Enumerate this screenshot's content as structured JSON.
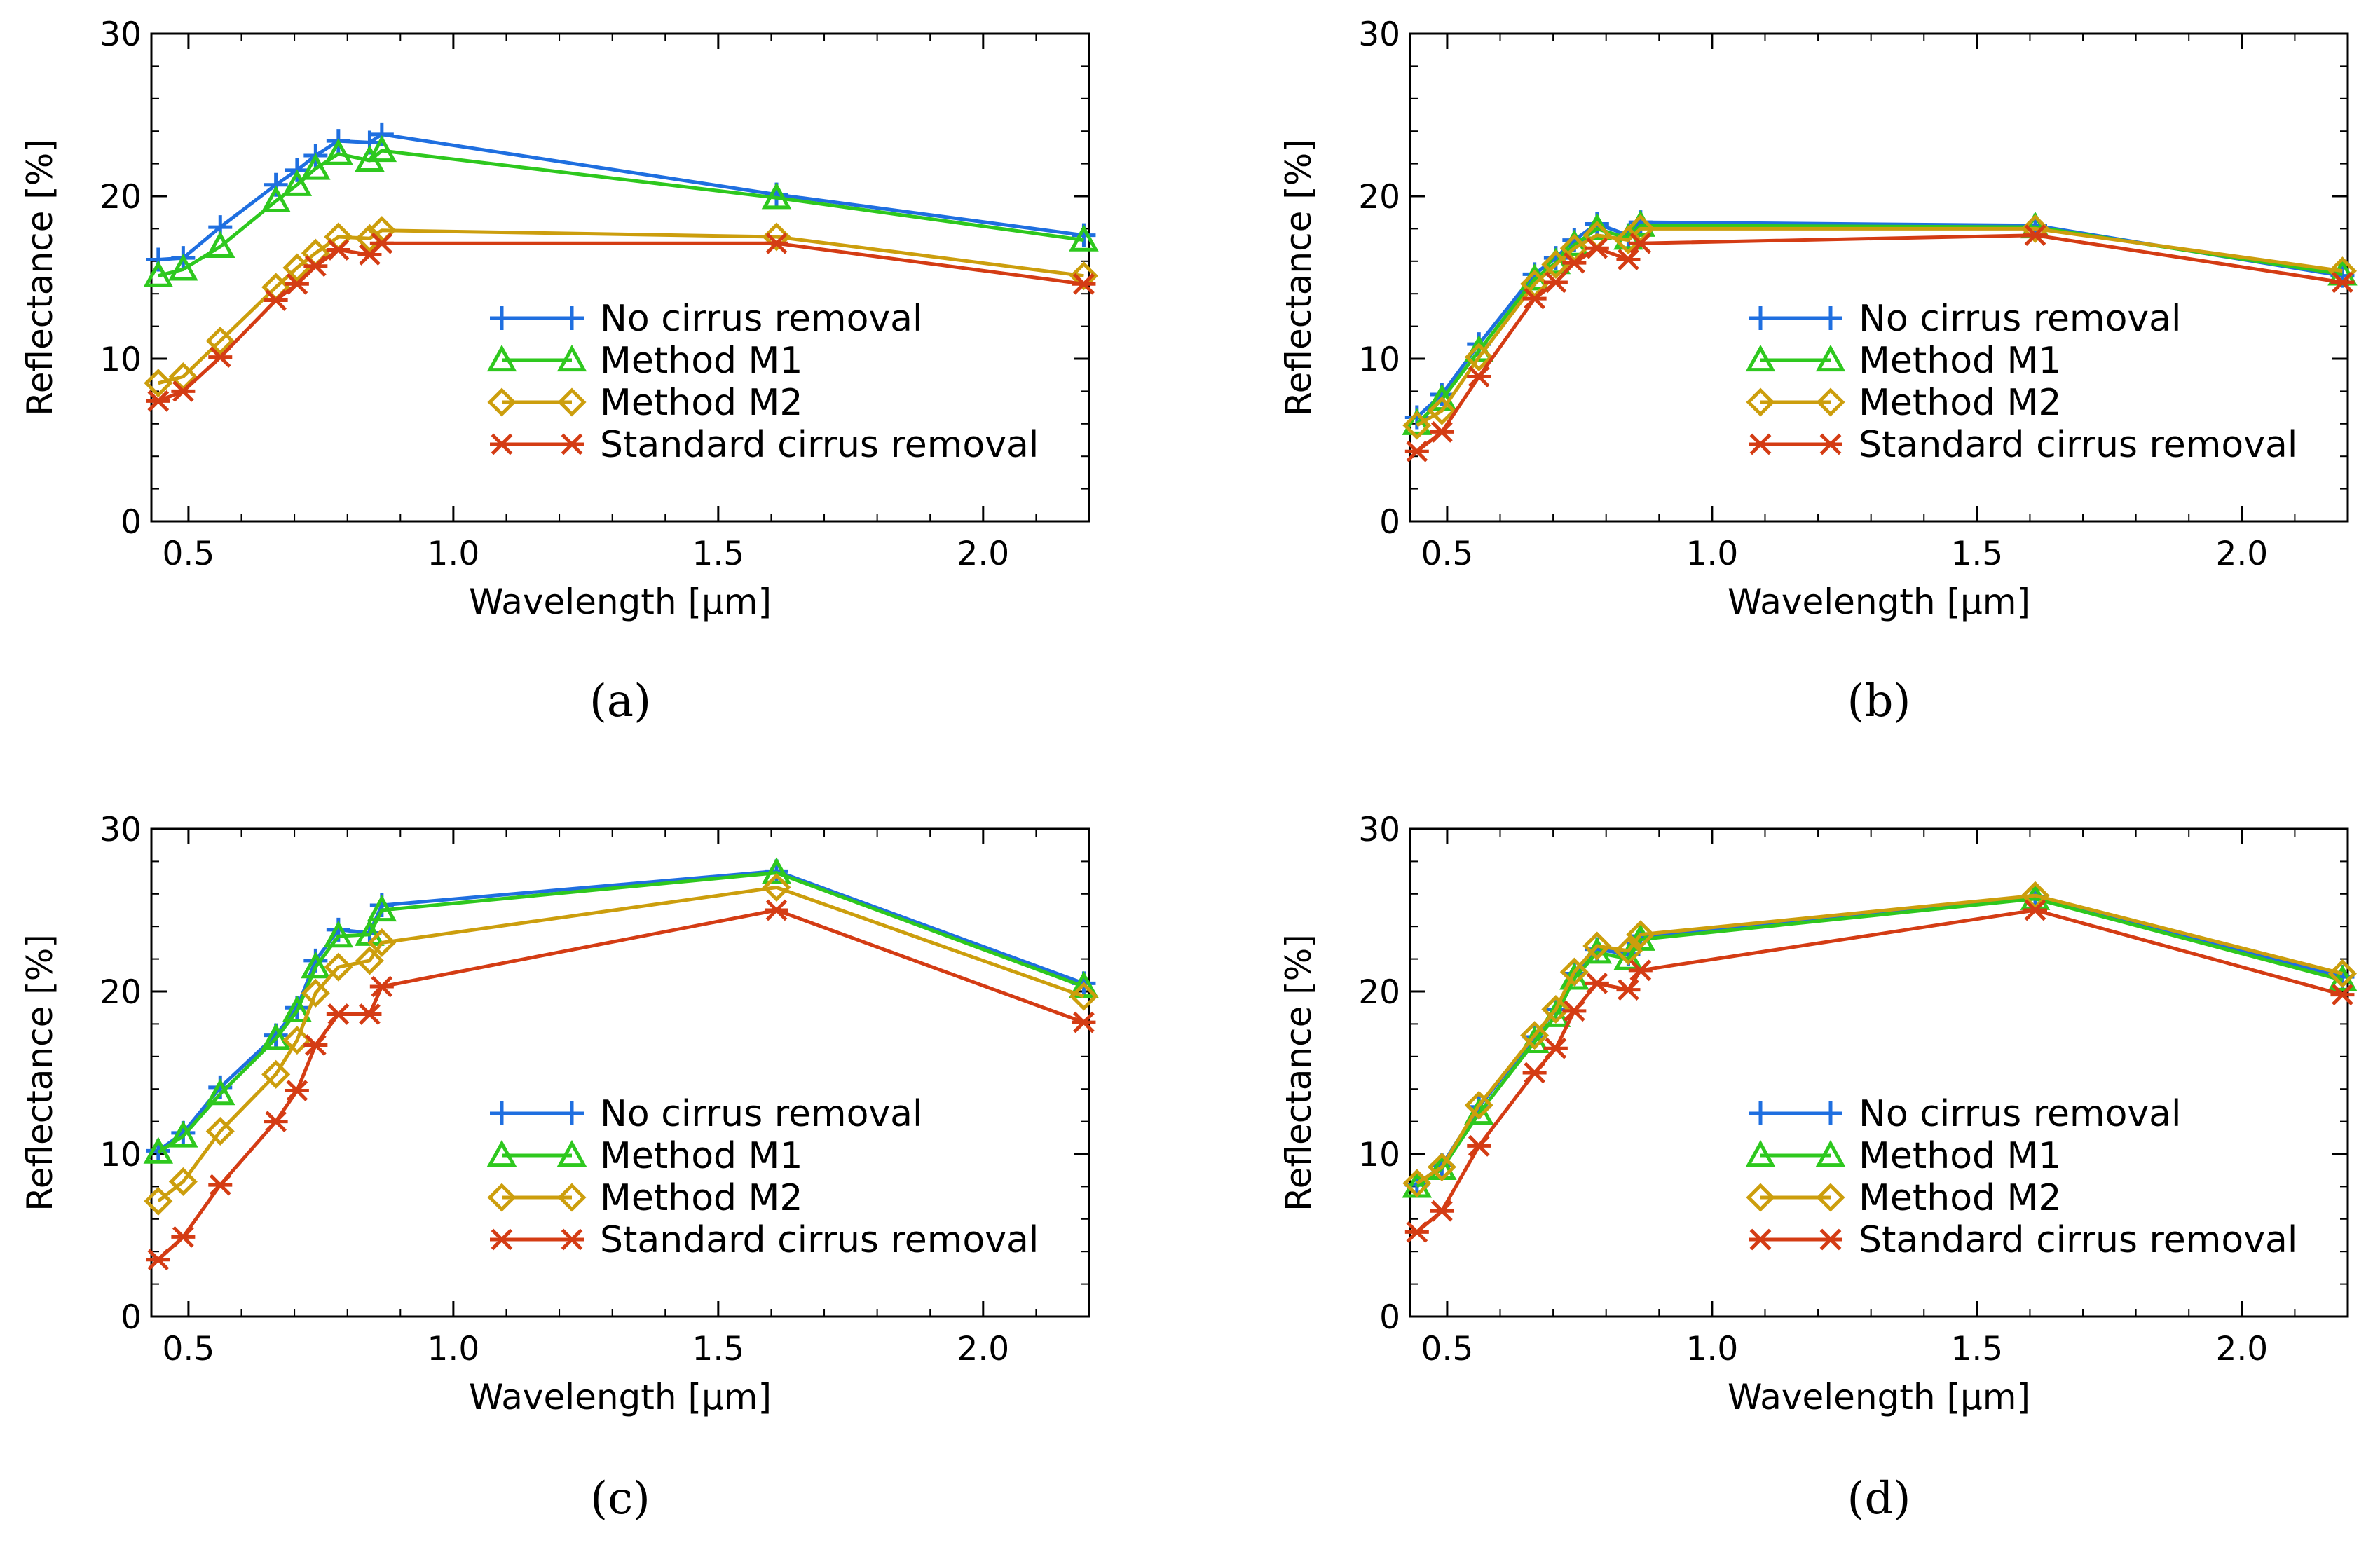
{
  "figure": {
    "panels_order": [
      "(a)",
      "(b)",
      "(c)",
      "(d)"
    ]
  },
  "styles": {
    "No cirrus removal": {
      "color": "#1f6fe0",
      "marker": "plus-marker"
    },
    "Method M1": {
      "color": "#2ec81e",
      "marker": "triangle-marker"
    },
    "Method M2": {
      "color": "#cc9e0d",
      "marker": "diamond-marker"
    },
    "Standard cirrus removal": {
      "color": "#d43c14",
      "marker": "asterisk-marker"
    }
  },
  "chart_data": [
    {
      "type": "line",
      "caption": "(a)",
      "xlabel": "Wavelength [µm]",
      "ylabel": "Reflectance [%]",
      "xlim": [
        0.43,
        2.2
      ],
      "ylim": [
        0,
        30
      ],
      "xticks": [
        0.5,
        1.0,
        1.5,
        2.0
      ],
      "xtick_labels": [
        "0.5",
        "1.0",
        "1.5",
        "2.0"
      ],
      "yticks": [
        0,
        10,
        20,
        30
      ],
      "ytick_labels": [
        "0",
        "10",
        "20",
        "30"
      ],
      "legend_position": "center-right",
      "x": [
        0.443,
        0.49,
        0.56,
        0.665,
        0.705,
        0.74,
        0.783,
        0.842,
        0.865,
        1.61,
        2.19
      ],
      "series": [
        {
          "name": "No cirrus removal",
          "values": [
            16.1,
            16.2,
            18.1,
            20.7,
            21.6,
            22.5,
            23.4,
            23.3,
            23.8,
            20.1,
            17.6
          ]
        },
        {
          "name": "Method M1",
          "values": [
            15.1,
            15.5,
            16.9,
            19.7,
            20.7,
            21.7,
            22.6,
            22.2,
            22.8,
            19.9,
            17.3
          ]
        },
        {
          "name": "Method M2",
          "values": [
            8.5,
            8.9,
            11.1,
            14.4,
            15.6,
            16.5,
            17.5,
            17.4,
            17.9,
            17.5,
            15.1
          ]
        },
        {
          "name": "Standard cirrus removal",
          "values": [
            7.4,
            8.0,
            10.1,
            13.6,
            14.6,
            15.7,
            16.7,
            16.4,
            17.1,
            17.1,
            14.6
          ]
        }
      ]
    },
    {
      "type": "line",
      "caption": "(b)",
      "xlabel": "Wavelength [µm]",
      "ylabel": "Reflectance [%]",
      "xlim": [
        0.43,
        2.2
      ],
      "ylim": [
        0,
        30
      ],
      "xticks": [
        0.5,
        1.0,
        1.5,
        2.0
      ],
      "xtick_labels": [
        "0.5",
        "1.0",
        "1.5",
        "2.0"
      ],
      "yticks": [
        0,
        10,
        20,
        30
      ],
      "ytick_labels": [
        "0",
        "10",
        "20",
        "30"
      ],
      "legend_position": "center-right",
      "x": [
        0.443,
        0.49,
        0.56,
        0.665,
        0.705,
        0.74,
        0.783,
        0.842,
        0.865,
        1.61,
        2.19
      ],
      "series": [
        {
          "name": "No cirrus removal",
          "values": [
            6.4,
            7.8,
            10.9,
            15.2,
            16.2,
            17.3,
            18.3,
            17.6,
            18.4,
            18.2,
            15.1
          ]
        },
        {
          "name": "Method M1",
          "values": [
            6.0,
            7.5,
            10.5,
            14.9,
            15.9,
            17.0,
            18.0,
            17.4,
            18.2,
            18.1,
            15.2
          ]
        },
        {
          "name": "Method M2",
          "values": [
            5.9,
            6.8,
            10.1,
            14.6,
            15.8,
            16.8,
            17.6,
            17.3,
            18.0,
            18.0,
            15.4
          ]
        },
        {
          "name": "Standard cirrus removal",
          "values": [
            4.3,
            5.5,
            8.9,
            13.7,
            14.7,
            15.9,
            16.8,
            16.1,
            17.1,
            17.6,
            14.7
          ]
        }
      ]
    },
    {
      "type": "line",
      "caption": "(c)",
      "xlabel": "Wavelength [µm]",
      "ylabel": "Reflectance [%]",
      "xlim": [
        0.43,
        2.2
      ],
      "ylim": [
        0,
        30
      ],
      "xticks": [
        0.5,
        1.0,
        1.5,
        2.0
      ],
      "xtick_labels": [
        "0.5",
        "1.0",
        "1.5",
        "2.0"
      ],
      "yticks": [
        0,
        10,
        20,
        30
      ],
      "ytick_labels": [
        "0",
        "10",
        "20",
        "30"
      ],
      "legend_position": "center-right",
      "x": [
        0.443,
        0.49,
        0.56,
        0.665,
        0.705,
        0.74,
        0.783,
        0.842,
        0.865,
        1.61,
        2.19
      ],
      "series": [
        {
          "name": "No cirrus removal",
          "values": [
            10.2,
            11.3,
            14.1,
            17.3,
            19.0,
            21.9,
            23.8,
            23.6,
            25.3,
            27.4,
            20.5
          ]
        },
        {
          "name": "Method M1",
          "values": [
            10.1,
            11.1,
            13.7,
            17.1,
            18.8,
            21.5,
            23.4,
            23.5,
            25.0,
            27.3,
            20.3
          ]
        },
        {
          "name": "Method M2",
          "values": [
            7.1,
            8.3,
            11.4,
            14.9,
            17.0,
            19.9,
            21.5,
            21.9,
            23.0,
            26.4,
            19.7
          ]
        },
        {
          "name": "Standard cirrus removal",
          "values": [
            3.5,
            4.9,
            8.1,
            12.0,
            13.9,
            16.7,
            18.6,
            18.6,
            20.3,
            25.0,
            18.1
          ]
        }
      ]
    },
    {
      "type": "line",
      "caption": "(d)",
      "xlabel": "Wavelength [µm]",
      "ylabel": "Reflectance [%]",
      "xlim": [
        0.43,
        2.2
      ],
      "ylim": [
        0,
        30
      ],
      "xticks": [
        0.5,
        1.0,
        1.5,
        2.0
      ],
      "xtick_labels": [
        "0.5",
        "1.0",
        "1.5",
        "2.0"
      ],
      "yticks": [
        0,
        10,
        20,
        30
      ],
      "ytick_labels": [
        "0",
        "10",
        "20",
        "30"
      ],
      "legend_position": "center-right",
      "x": [
        0.443,
        0.49,
        0.56,
        0.665,
        0.705,
        0.74,
        0.783,
        0.842,
        0.865,
        1.61,
        2.19
      ],
      "series": [
        {
          "name": "No cirrus removal",
          "values": [
            8.1,
            9.3,
            12.9,
            17.2,
            18.9,
            21.1,
            22.6,
            22.3,
            23.4,
            25.8,
            20.9
          ]
        },
        {
          "name": "Method M1",
          "values": [
            8.0,
            9.1,
            12.5,
            16.9,
            18.5,
            20.8,
            22.4,
            22.0,
            23.2,
            25.7,
            20.7
          ]
        },
        {
          "name": "Method M2",
          "values": [
            8.2,
            9.2,
            13.0,
            17.3,
            18.9,
            21.2,
            22.8,
            22.5,
            23.5,
            25.9,
            21.1
          ]
        },
        {
          "name": "Standard cirrus removal",
          "values": [
            5.2,
            6.5,
            10.5,
            15.0,
            16.5,
            18.8,
            20.5,
            20.1,
            21.3,
            25.0,
            19.8
          ]
        }
      ]
    }
  ]
}
